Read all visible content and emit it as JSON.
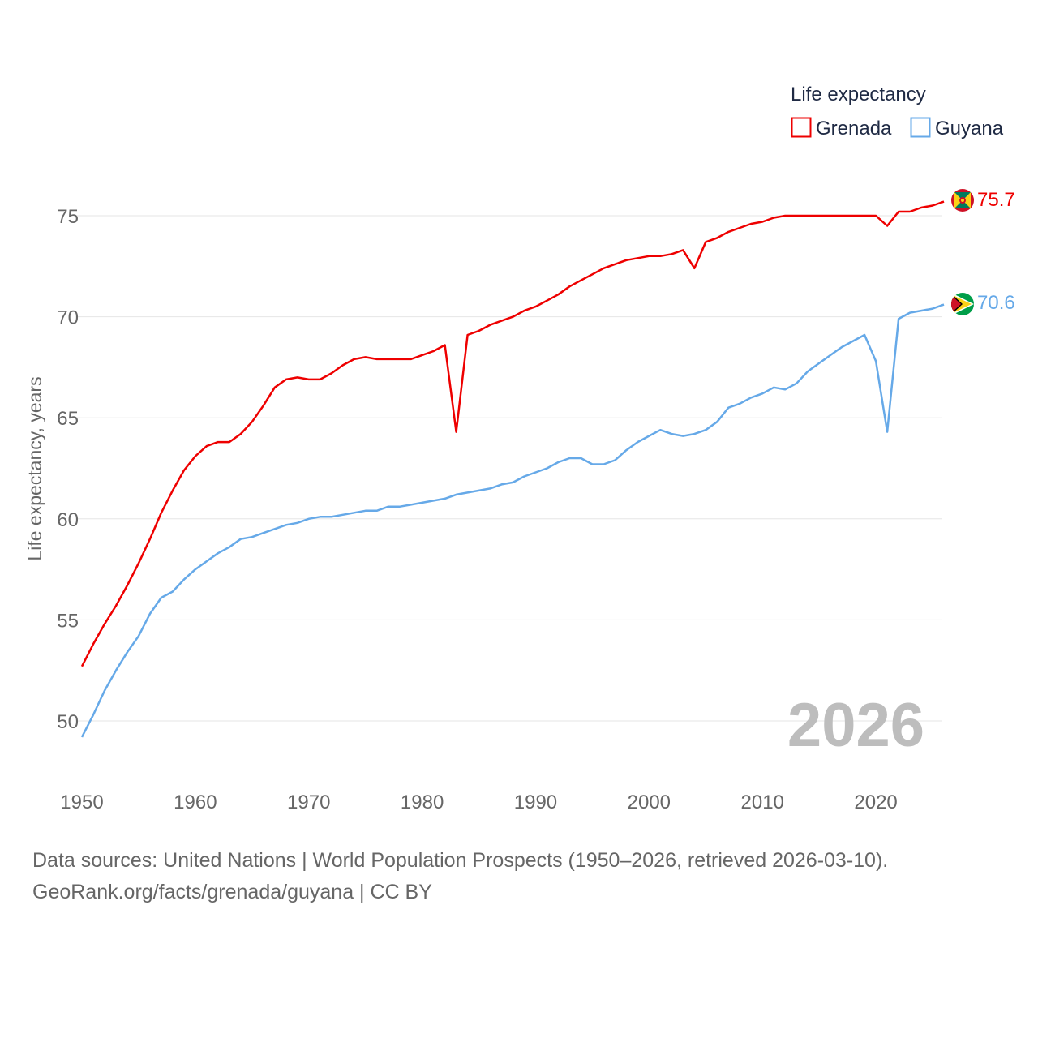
{
  "chart_data": {
    "type": "line",
    "legend_title": "Life expectancy",
    "ylabel": "Life expectancy, years",
    "xlabel": "",
    "xlim": [
      1950,
      2026
    ],
    "ylim": [
      48,
      77
    ],
    "y_ticks": [
      50,
      55,
      60,
      65,
      70,
      75
    ],
    "x_ticks": [
      1950,
      1960,
      1970,
      1980,
      1990,
      2000,
      2010,
      2020
    ],
    "year_label": "2026",
    "legend_position": "top-right",
    "series": [
      {
        "name": "Grenada",
        "color": "#ee0000",
        "end_label": "75.7",
        "x": [
          1950,
          1951,
          1952,
          1953,
          1954,
          1955,
          1956,
          1957,
          1958,
          1959,
          1960,
          1961,
          1962,
          1963,
          1964,
          1965,
          1966,
          1967,
          1968,
          1969,
          1970,
          1971,
          1972,
          1973,
          1974,
          1975,
          1976,
          1977,
          1978,
          1979,
          1980,
          1981,
          1982,
          1983,
          1984,
          1985,
          1986,
          1987,
          1988,
          1989,
          1990,
          1991,
          1992,
          1993,
          1994,
          1995,
          1996,
          1997,
          1998,
          1999,
          2000,
          2001,
          2002,
          2003,
          2004,
          2005,
          2006,
          2007,
          2008,
          2009,
          2010,
          2011,
          2012,
          2013,
          2014,
          2015,
          2016,
          2017,
          2018,
          2019,
          2020,
          2021,
          2022,
          2023,
          2024,
          2025,
          2026
        ],
        "values": [
          52.7,
          53.8,
          54.8,
          55.7,
          56.7,
          57.8,
          59.0,
          60.3,
          61.4,
          62.4,
          63.1,
          63.6,
          63.8,
          63.8,
          64.2,
          64.8,
          65.6,
          66.5,
          66.9,
          67.0,
          66.9,
          66.9,
          67.2,
          67.6,
          67.9,
          68.0,
          67.9,
          67.9,
          67.9,
          67.9,
          68.1,
          68.3,
          68.6,
          64.3,
          69.1,
          69.3,
          69.6,
          69.8,
          70.0,
          70.3,
          70.5,
          70.8,
          71.1,
          71.5,
          71.8,
          72.1,
          72.4,
          72.6,
          72.8,
          72.9,
          73.0,
          73.0,
          73.1,
          73.3,
          72.4,
          73.7,
          73.9,
          74.2,
          74.4,
          74.6,
          74.7,
          74.9,
          75.0,
          75.0,
          75.0,
          75.0,
          75.0,
          75.0,
          75.0,
          75.0,
          75.0,
          74.5,
          75.2,
          75.2,
          75.4,
          75.5,
          75.7
        ]
      },
      {
        "name": "Guyana",
        "color": "#66a9e8",
        "end_label": "70.6",
        "x": [
          1950,
          1951,
          1952,
          1953,
          1954,
          1955,
          1956,
          1957,
          1958,
          1959,
          1960,
          1961,
          1962,
          1963,
          1964,
          1965,
          1966,
          1967,
          1968,
          1969,
          1970,
          1971,
          1972,
          1973,
          1974,
          1975,
          1976,
          1977,
          1978,
          1979,
          1980,
          1981,
          1982,
          1983,
          1984,
          1985,
          1986,
          1987,
          1988,
          1989,
          1990,
          1991,
          1992,
          1993,
          1994,
          1995,
          1996,
          1997,
          1998,
          1999,
          2000,
          2001,
          2002,
          2003,
          2004,
          2005,
          2006,
          2007,
          2008,
          2009,
          2010,
          2011,
          2012,
          2013,
          2014,
          2015,
          2016,
          2017,
          2018,
          2019,
          2020,
          2021,
          2022,
          2023,
          2024,
          2025,
          2026
        ],
        "values": [
          49.2,
          50.3,
          51.5,
          52.5,
          53.4,
          54.2,
          55.3,
          56.1,
          56.4,
          57.0,
          57.5,
          57.9,
          58.3,
          58.6,
          59.0,
          59.1,
          59.3,
          59.5,
          59.7,
          59.8,
          60.0,
          60.1,
          60.1,
          60.2,
          60.3,
          60.4,
          60.4,
          60.6,
          60.6,
          60.7,
          60.8,
          60.9,
          61.0,
          61.2,
          61.3,
          61.4,
          61.5,
          61.7,
          61.8,
          62.1,
          62.3,
          62.5,
          62.8,
          63.0,
          63.0,
          62.7,
          62.7,
          62.9,
          63.4,
          63.8,
          64.1,
          64.4,
          64.2,
          64.1,
          64.2,
          64.4,
          64.8,
          65.5,
          65.7,
          66.0,
          66.2,
          66.5,
          66.4,
          66.7,
          67.3,
          67.7,
          68.1,
          68.5,
          68.8,
          69.1,
          67.8,
          64.3,
          69.9,
          70.2,
          70.3,
          70.4,
          70.6
        ]
      }
    ]
  },
  "footer": {
    "line1": "Data sources: United Nations | World Population Prospects (1950–2026, retrieved 2026-03-10).",
    "line2": "GeoRank.org/facts/grenada/guyana | CC BY"
  },
  "flags": {
    "grenada": {
      "icon": "grenada-flag-icon",
      "colors": [
        "#ce1126",
        "#fcd116",
        "#007a5e"
      ]
    },
    "guyana": {
      "icon": "guyana-flag-icon",
      "colors": [
        "#009e49",
        "#fcd116",
        "#ce1126",
        "#000000",
        "#ffffff"
      ]
    }
  }
}
